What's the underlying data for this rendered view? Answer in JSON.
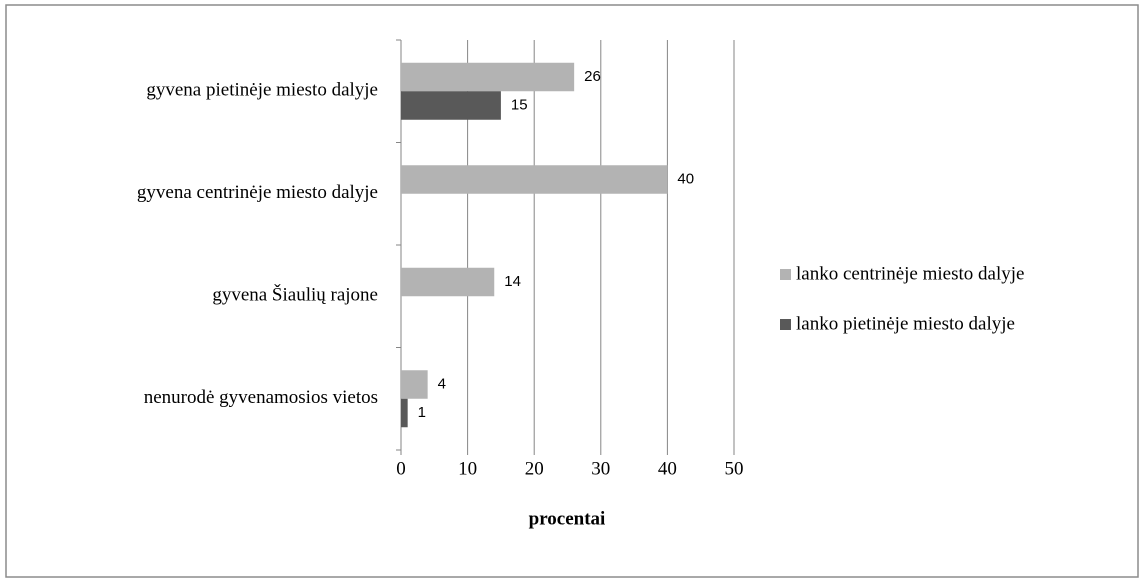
{
  "chart_data": {
    "type": "bar",
    "orientation": "horizontal",
    "categories": [
      "gyvena pietinėje miesto dalyje",
      "gyvena centrinėje miesto dalyje",
      "gyvena Šiaulių rajone",
      "nenurodė gyvenamosios vietos"
    ],
    "series": [
      {
        "name": "lanko centrinėje miesto dalyje",
        "color": "#b3b3b3",
        "values": [
          26,
          40,
          14,
          4
        ]
      },
      {
        "name": "lanko pietinėje miesto dalyje",
        "color": "#595959",
        "values": [
          15,
          null,
          null,
          1
        ]
      }
    ],
    "xlabel": "procentai",
    "xlim": [
      0,
      50
    ],
    "xticks": [
      0,
      10,
      20,
      30,
      40,
      50
    ],
    "grid": true,
    "legend": "right"
  }
}
